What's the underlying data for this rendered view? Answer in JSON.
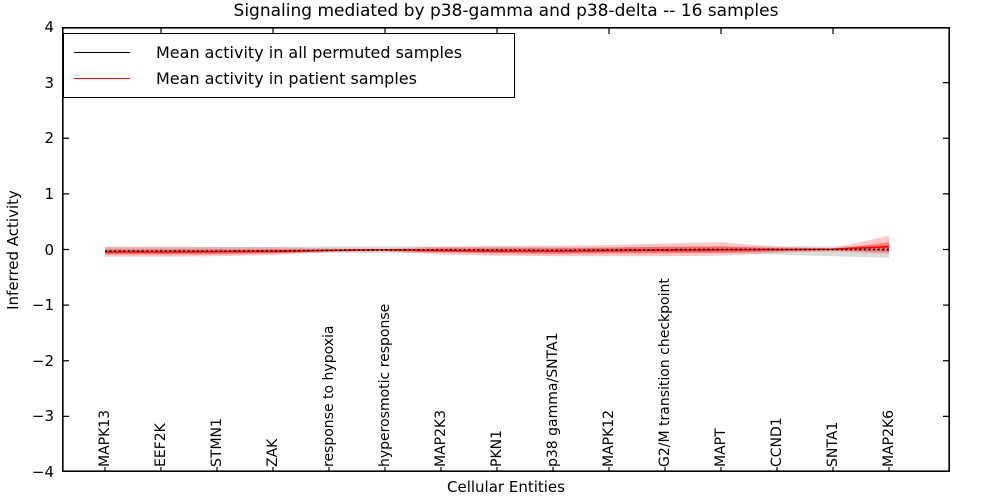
{
  "title": "Signaling mediated by p38-gamma and p38-delta -- 16 samples",
  "axes": {
    "xlabel": "Cellular Entities",
    "ylabel": "Inferred Activity",
    "y_tick_labels": [
      "4",
      "3",
      "2",
      "1",
      "0",
      "−1",
      "−2",
      "−3",
      "−4"
    ]
  },
  "legend": {
    "entries": [
      {
        "label": "Mean activity in all permuted samples",
        "color": "#000000"
      },
      {
        "label": "Mean activity in patient samples",
        "color": "#ff0000"
      }
    ]
  },
  "chart_data": {
    "type": "line",
    "title": "Signaling mediated by p38-gamma and p38-delta -- 16 samples",
    "xlabel": "Cellular Entities",
    "ylabel": "Inferred Activity",
    "ylim": [
      -4,
      4
    ],
    "y_ticks": [
      4,
      3,
      2,
      1,
      0,
      -1,
      -2,
      -3,
      -4
    ],
    "grid": false,
    "legend_position": "upper-left",
    "x_categories": [
      "MAPK13",
      "EEF2K",
      "STMN1",
      "ZAK",
      "response to hypoxia",
      "hyperosmotic response",
      "MAP2K3",
      "PKN1",
      "p38 gamma/SNTA1",
      "MAPK12",
      "G2/M transition checkpoint",
      "MAPT",
      "CCND1",
      "SNTA1",
      "MAP2K6"
    ],
    "series": [
      {
        "name": "Mean activity in all permuted samples",
        "color": "#000000",
        "style": "dashed",
        "values": [
          -0.03,
          -0.03,
          -0.03,
          -0.025,
          -0.015,
          -0.005,
          -0.005,
          -0.01,
          -0.015,
          -0.01,
          -0.005,
          0.0,
          0.0,
          0.0,
          0.0
        ]
      },
      {
        "name": "Mean activity in patient samples",
        "color": "#ff0000",
        "style": "solid",
        "values": [
          -0.045,
          -0.045,
          -0.04,
          -0.035,
          -0.015,
          -0.005,
          -0.02,
          -0.025,
          -0.03,
          -0.02,
          -0.01,
          -0.005,
          0.0,
          0.005,
          0.05
        ]
      }
    ],
    "bands": [
      {
        "name": "permuted-std-band",
        "color": "#999999",
        "opacity": 0.35,
        "upper": [
          0.04,
          0.04,
          0.04,
          0.045,
          0.055,
          0.06,
          0.05,
          0.045,
          0.04,
          0.04,
          0.045,
          0.05,
          0.06,
          0.06,
          0.05
        ],
        "lower": [
          -0.06,
          -0.06,
          -0.055,
          -0.055,
          -0.06,
          -0.065,
          -0.055,
          -0.05,
          -0.05,
          -0.05,
          -0.05,
          -0.06,
          -0.09,
          -0.12,
          -0.15
        ]
      },
      {
        "name": "patient-std-outer-band",
        "color": "#ff0000",
        "opacity": 0.22,
        "upper": [
          0.05,
          0.05,
          0.045,
          0.04,
          0.02,
          0.01,
          0.055,
          0.065,
          0.07,
          0.08,
          0.11,
          0.13,
          0.05,
          0.02,
          0.25
        ],
        "lower": [
          -0.13,
          -0.13,
          -0.12,
          -0.1,
          -0.05,
          -0.03,
          -0.09,
          -0.11,
          -0.12,
          -0.12,
          -0.12,
          -0.11,
          -0.06,
          -0.03,
          -0.08
        ]
      },
      {
        "name": "patient-std-inner-band",
        "color": "#ff0000",
        "opacity": 0.38,
        "upper": [
          0.0,
          0.0,
          0.0,
          0.0,
          -0.005,
          -0.005,
          0.02,
          0.02,
          0.02,
          0.03,
          0.05,
          0.06,
          0.02,
          0.005,
          0.13
        ],
        "lower": [
          -0.09,
          -0.09,
          -0.085,
          -0.07,
          -0.03,
          -0.02,
          -0.05,
          -0.07,
          -0.08,
          -0.07,
          -0.07,
          -0.06,
          -0.03,
          -0.015,
          -0.04
        ]
      }
    ],
    "top_tick_indices": [
      1,
      3,
      5,
      7,
      9,
      11,
      13
    ]
  }
}
